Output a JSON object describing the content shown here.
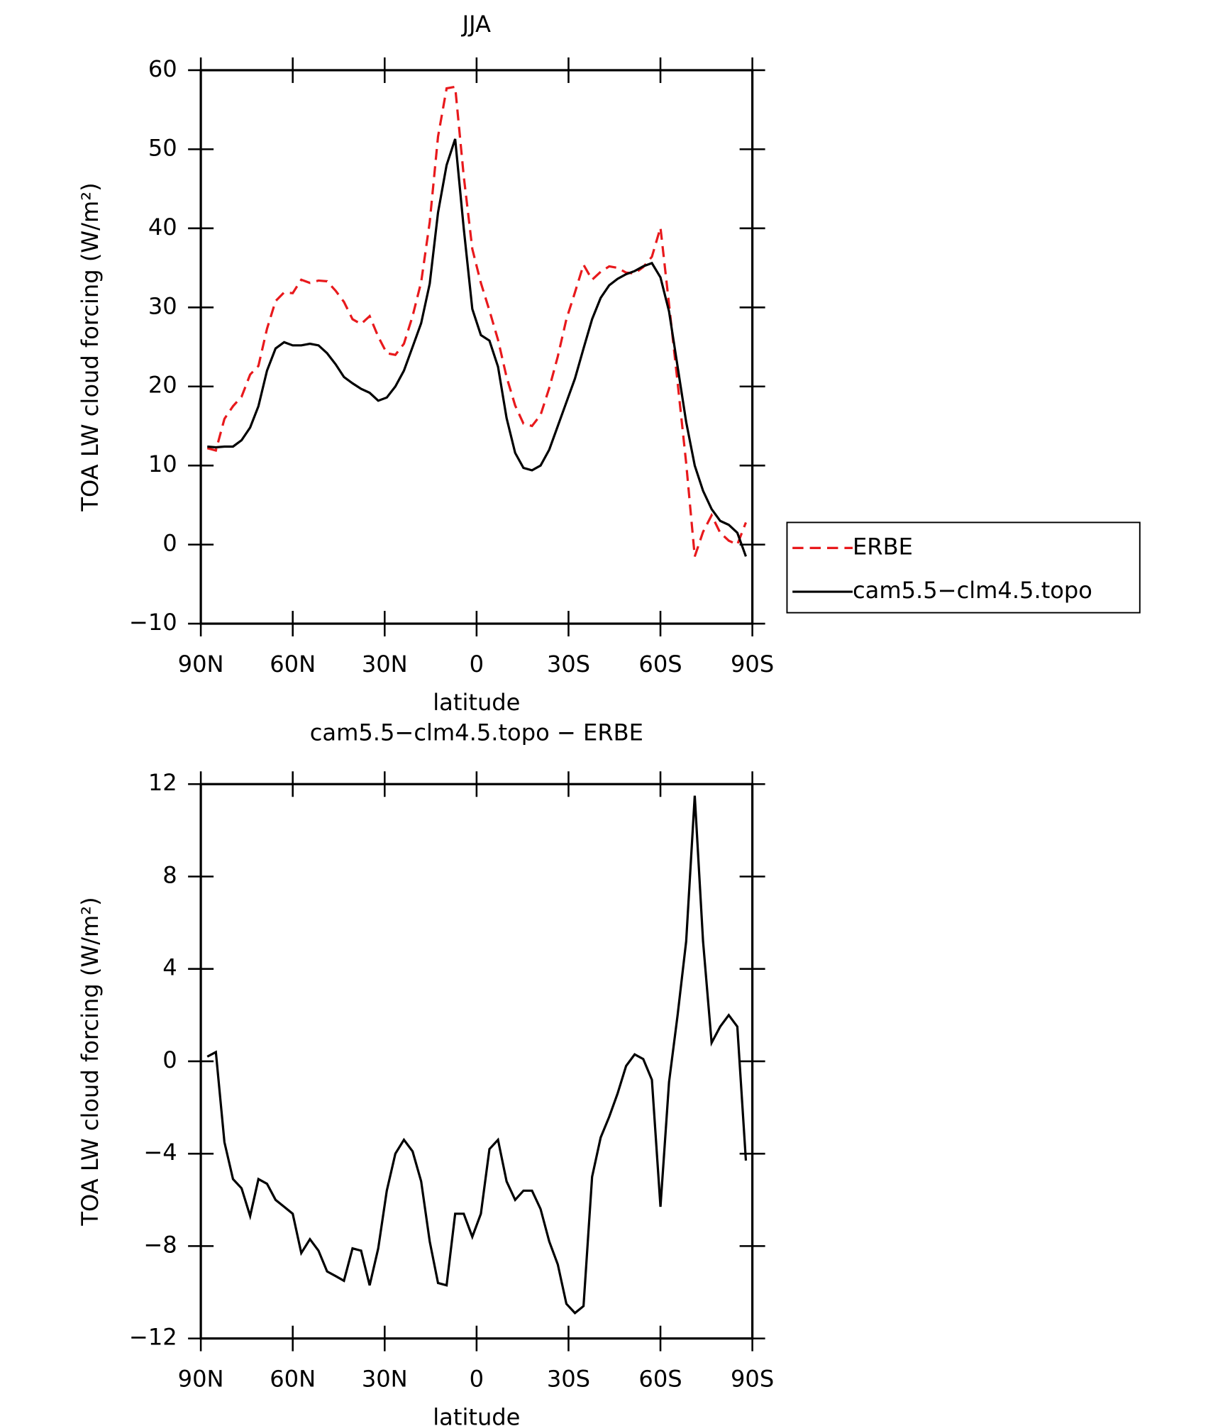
{
  "chart_data": [
    {
      "type": "line",
      "title": "JJA",
      "xlabel": "latitude",
      "ylabel": "TOA LW cloud forcing (W/m²)",
      "x": [
        87.9,
        85.1,
        82.3,
        79.5,
        76.7,
        73.9,
        71.2,
        68.4,
        65.6,
        62.8,
        60.0,
        57.2,
        54.4,
        51.6,
        48.8,
        46.0,
        43.3,
        40.5,
        37.7,
        34.9,
        32.1,
        29.3,
        26.5,
        23.7,
        20.9,
        18.1,
        15.3,
        12.6,
        9.8,
        7.0,
        4.2,
        1.4,
        -1.4,
        -4.2,
        -7.0,
        -9.8,
        -12.6,
        -15.3,
        -18.1,
        -20.9,
        -23.7,
        -26.5,
        -29.3,
        -32.1,
        -34.9,
        -37.7,
        -40.5,
        -43.3,
        -46.0,
        -48.8,
        -51.6,
        -54.4,
        -57.2,
        -60.0,
        -62.8,
        -65.6,
        -68.4,
        -71.2,
        -73.9,
        -76.7,
        -79.5,
        -82.3,
        -85.1,
        -87.9
      ],
      "series": [
        {
          "name": "ERBE",
          "color": "#e8191c",
          "line_style": "dashed",
          "values": [
            12.2,
            11.9,
            15.9,
            17.5,
            18.7,
            21.5,
            22.6,
            27.3,
            30.8,
            31.9,
            31.8,
            33.5,
            33.1,
            33.4,
            33.3,
            32.1,
            30.7,
            28.5,
            27.9,
            28.9,
            26.3,
            24.2,
            24.0,
            25.4,
            28.9,
            33.2,
            40.8,
            51.6,
            57.7,
            57.9,
            46.6,
            37.4,
            33.1,
            29.6,
            25.9,
            21.2,
            17.6,
            15.3,
            15.0,
            16.4,
            19.8,
            23.8,
            28.5,
            31.9,
            35.4,
            33.5,
            34.5,
            35.2,
            35.0,
            34.4,
            34.3,
            35.1,
            36.4,
            40.1,
            30.4,
            20.5,
            10.3,
            -1.5,
            1.6,
            3.7,
            1.5,
            0.5,
            0.0,
            2.8
          ]
        },
        {
          "name": "cam5.5−clm4.5.topo",
          "color": "#000000",
          "line_style": "solid",
          "values": [
            12.4,
            12.3,
            12.4,
            12.4,
            13.2,
            14.8,
            17.5,
            22.0,
            24.8,
            25.6,
            25.2,
            25.2,
            25.4,
            25.2,
            24.2,
            22.8,
            21.2,
            20.4,
            19.7,
            19.2,
            18.2,
            18.6,
            20.0,
            22.0,
            25.0,
            28.0,
            33.0,
            42.0,
            48.0,
            51.3,
            40.0,
            29.8,
            26.5,
            25.8,
            22.5,
            16.0,
            11.6,
            9.7,
            9.4,
            10.0,
            12.0,
            15.0,
            18.0,
            21.0,
            24.8,
            28.5,
            31.2,
            32.8,
            33.6,
            34.2,
            34.6,
            35.2,
            35.6,
            33.8,
            29.5,
            22.5,
            15.5,
            10.0,
            6.8,
            4.5,
            3.0,
            2.5,
            1.5,
            -1.5
          ]
        }
      ],
      "xlim": [
        90,
        -90
      ],
      "xticks": [
        {
          "value": 90,
          "label": "90N"
        },
        {
          "value": 60,
          "label": "60N"
        },
        {
          "value": 30,
          "label": "30N"
        },
        0,
        {
          "value": -30,
          "label": "30S"
        },
        {
          "value": -60,
          "label": "60S"
        },
        {
          "value": -90,
          "label": "90S"
        }
      ],
      "ylim": [
        -10,
        60
      ],
      "yticks": [
        {
          "value": -10,
          "label": "−10"
        },
        0,
        10,
        20,
        30,
        40,
        50,
        60
      ],
      "legend": "right"
    },
    {
      "type": "line",
      "title": "cam5.5−clm4.5.topo − ERBE",
      "xlabel": "latitude",
      "ylabel": "TOA LW cloud forcing (W/m²)",
      "x": [
        87.9,
        85.1,
        82.3,
        79.5,
        76.7,
        73.9,
        71.2,
        68.4,
        65.6,
        62.8,
        60.0,
        57.2,
        54.4,
        51.6,
        48.8,
        46.0,
        43.3,
        40.5,
        37.7,
        34.9,
        32.1,
        29.3,
        26.5,
        23.7,
        20.9,
        18.1,
        15.3,
        12.6,
        9.8,
        7.0,
        4.2,
        1.4,
        -1.4,
        -4.2,
        -7.0,
        -9.8,
        -12.6,
        -15.3,
        -18.1,
        -20.9,
        -23.7,
        -26.5,
        -29.3,
        -32.1,
        -34.9,
        -37.7,
        -40.5,
        -43.3,
        -46.0,
        -48.8,
        -51.6,
        -54.4,
        -57.2,
        -60.0,
        -62.8,
        -65.6,
        -68.4,
        -71.2,
        -73.9,
        -76.7,
        -79.5,
        -82.3,
        -85.1,
        -87.9
      ],
      "series": [
        {
          "color": "#000000",
          "line_style": "solid",
          "values": [
            0.2,
            0.4,
            -3.5,
            -5.1,
            -5.5,
            -6.7,
            -5.1,
            -5.3,
            -6.0,
            -6.3,
            -6.6,
            -8.3,
            -7.7,
            -8.2,
            -9.1,
            -9.3,
            -9.5,
            -8.1,
            -8.2,
            -9.7,
            -8.1,
            -5.6,
            -4.0,
            -3.4,
            -3.9,
            -5.2,
            -7.8,
            -9.6,
            -9.7,
            -6.6,
            -6.6,
            -7.6,
            -6.6,
            -3.8,
            -3.4,
            -5.2,
            -6.0,
            -5.6,
            -5.6,
            -6.4,
            -7.8,
            -8.8,
            -10.5,
            -10.9,
            -10.6,
            -5.0,
            -3.3,
            -2.4,
            -1.4,
            -0.2,
            0.3,
            0.1,
            -0.8,
            -6.3,
            -0.9,
            2.0,
            5.2,
            11.5,
            5.2,
            0.8,
            1.5,
            2.0,
            1.5,
            -4.3
          ]
        }
      ],
      "xlim": [
        90,
        -90
      ],
      "xticks": [
        {
          "value": 90,
          "label": "90N"
        },
        {
          "value": 60,
          "label": "60N"
        },
        {
          "value": 30,
          "label": "30N"
        },
        0,
        {
          "value": -30,
          "label": "30S"
        },
        {
          "value": -60,
          "label": "60S"
        },
        {
          "value": -90,
          "label": "90S"
        }
      ],
      "ylim": [
        -12,
        12
      ],
      "yticks": [
        {
          "value": -12,
          "label": "−12"
        },
        {
          "value": -8,
          "label": "−8"
        },
        {
          "value": -4,
          "label": "−4"
        },
        0,
        4,
        8,
        12
      ]
    }
  ]
}
